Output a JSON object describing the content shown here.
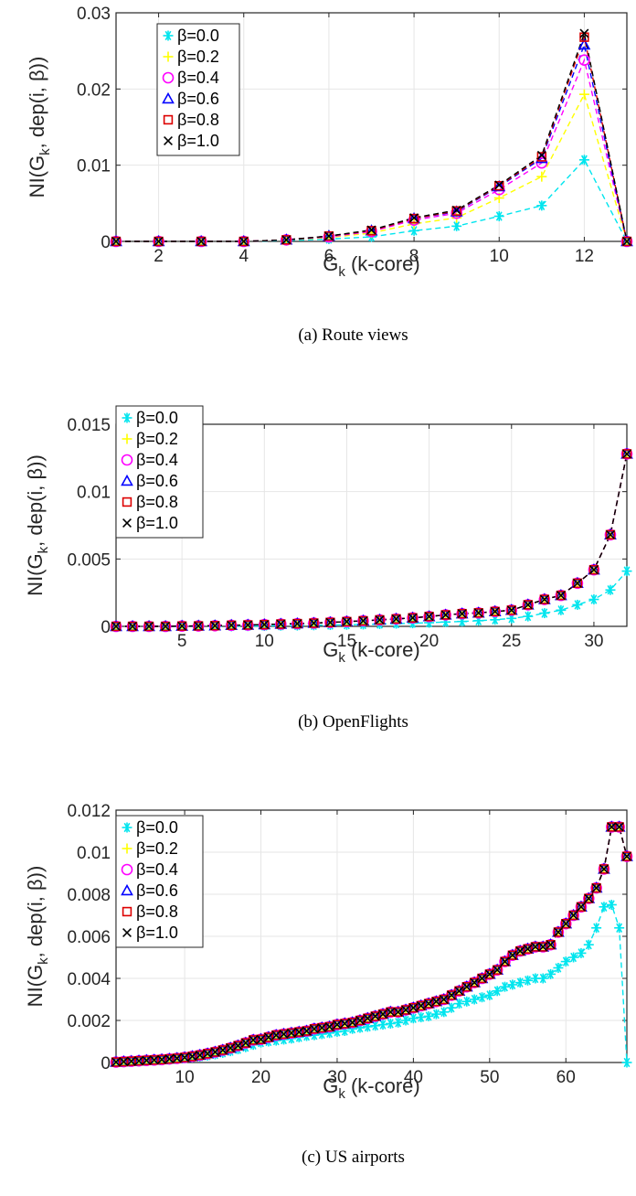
{
  "series_style": [
    {
      "color": "#00e5ee",
      "marker": "asterisk"
    },
    {
      "color": "#ffff00",
      "marker": "plus"
    },
    {
      "color": "#ff00ff",
      "marker": "circle"
    },
    {
      "color": "#0000ff",
      "marker": "triangle"
    },
    {
      "color": "#dd0000",
      "marker": "square"
    },
    {
      "color": "#000000",
      "marker": "x"
    }
  ],
  "chart_data": [
    {
      "type": "line",
      "caption": "(a) Route views",
      "xlabel_main": "G",
      "xlabel_sub": "k",
      "xlabel_rest": " (k-core)",
      "ylabel_prefix": "NI(G",
      "ylabel_sub": "k",
      "ylabel_suffix": ", dep(i, β))",
      "xlim": [
        1,
        13
      ],
      "ylim": [
        0,
        0.03
      ],
      "xticks": [
        2,
        4,
        6,
        8,
        10,
        12
      ],
      "yticks": [
        0,
        0.01,
        0.02,
        0.03
      ],
      "ytick_labels": [
        "0",
        "0.01",
        "0.02",
        "0.03"
      ],
      "grid": true,
      "legend_position": "top-left",
      "x": [
        1,
        2,
        3,
        4,
        5,
        6,
        7,
        8,
        9,
        10,
        11,
        12,
        13
      ],
      "series": [
        {
          "name": "β=0.0",
          "values": [
            0,
            0,
            0,
            0,
            0.0001,
            0.0003,
            0.0006,
            0.0014,
            0.002,
            0.0033,
            0.0047,
            0.0107,
            0
          ]
        },
        {
          "name": "β=0.2",
          "values": [
            0,
            0,
            0,
            0,
            0.0002,
            0.0005,
            0.0011,
            0.0023,
            0.0031,
            0.0057,
            0.0085,
            0.0193,
            0
          ]
        },
        {
          "name": "β=0.4",
          "values": [
            0,
            0,
            0,
            0,
            0.0002,
            0.0006,
            0.0013,
            0.0028,
            0.0037,
            0.0068,
            0.0103,
            0.0238,
            0
          ]
        },
        {
          "name": "β=0.6",
          "values": [
            0,
            0,
            0,
            0,
            0.0002,
            0.0007,
            0.0014,
            0.003,
            0.0039,
            0.0072,
            0.0109,
            0.0258,
            0
          ]
        },
        {
          "name": "β=0.8",
          "values": [
            0,
            0,
            0,
            0,
            0.0002,
            0.0007,
            0.0014,
            0.003,
            0.004,
            0.0073,
            0.0111,
            0.0268,
            0
          ]
        },
        {
          "name": "β=1.0",
          "values": [
            0,
            0,
            0,
            0,
            0.0002,
            0.0007,
            0.0015,
            0.0031,
            0.0041,
            0.0074,
            0.0113,
            0.0273,
            0
          ]
        }
      ]
    },
    {
      "type": "line",
      "caption": "(b) OpenFlights",
      "xlabel_main": "G",
      "xlabel_sub": "k",
      "xlabel_rest": " (k-core)",
      "ylabel_prefix": "NI(G",
      "ylabel_sub": "k",
      "ylabel_suffix": ", dep(i, β))",
      "xlim": [
        1,
        32
      ],
      "ylim": [
        0,
        0.015
      ],
      "xticks": [
        5,
        10,
        15,
        20,
        25,
        30
      ],
      "yticks": [
        0,
        0.005,
        0.01,
        0.015
      ],
      "ytick_labels": [
        "0",
        "0.005",
        "0.01",
        "0.015"
      ],
      "grid": true,
      "legend_position": "top-left",
      "x": [
        1,
        2,
        3,
        4,
        5,
        6,
        7,
        8,
        9,
        10,
        11,
        12,
        13,
        14,
        15,
        16,
        17,
        18,
        19,
        20,
        21,
        22,
        23,
        24,
        25,
        26,
        27,
        28,
        29,
        30,
        31,
        32
      ],
      "series": [
        {
          "name": "β=0.0",
          "values": [
            0,
            0,
            0,
            0,
            0,
            0,
            0,
            0,
            2e-05,
            3e-05,
            5e-05,
            6e-05,
            8e-05,
            0.0001,
            0.00012,
            0.00014,
            0.00017,
            0.0002,
            0.00023,
            0.00027,
            0.00032,
            0.00036,
            0.00042,
            0.00049,
            0.00059,
            0.00074,
            0.00098,
            0.0012,
            0.0016,
            0.002,
            0.0027,
            0.0041
          ]
        },
        {
          "name": "β=0.2",
          "values": [
            0,
            0,
            0,
            0,
            2e-05,
            3e-05,
            5e-05,
            8e-05,
            0.0001,
            0.00013,
            0.00017,
            0.0002,
            0.00024,
            0.00029,
            0.00035,
            0.00041,
            0.00048,
            0.00055,
            0.00063,
            0.00073,
            0.00085,
            0.00094,
            0.001,
            0.0011,
            0.0012,
            0.0016,
            0.002,
            0.0023,
            0.0032,
            0.0042,
            0.0068,
            0.0128
          ]
        },
        {
          "name": "β=0.4",
          "values": [
            0,
            0,
            0,
            0,
            2e-05,
            3e-05,
            5e-05,
            8e-05,
            0.0001,
            0.00013,
            0.00017,
            0.0002,
            0.00024,
            0.00029,
            0.00035,
            0.00041,
            0.00048,
            0.00055,
            0.00063,
            0.00073,
            0.00085,
            0.00094,
            0.001,
            0.0011,
            0.0012,
            0.0016,
            0.002,
            0.0023,
            0.0032,
            0.0042,
            0.0068,
            0.0128
          ]
        },
        {
          "name": "β=0.6",
          "values": [
            0,
            0,
            0,
            0,
            2e-05,
            3e-05,
            5e-05,
            8e-05,
            0.0001,
            0.00013,
            0.00017,
            0.0002,
            0.00024,
            0.00029,
            0.00035,
            0.00041,
            0.00048,
            0.00055,
            0.00063,
            0.00073,
            0.00085,
            0.00094,
            0.001,
            0.0011,
            0.0012,
            0.0016,
            0.002,
            0.0023,
            0.0032,
            0.0042,
            0.0068,
            0.0128
          ]
        },
        {
          "name": "β=0.8",
          "values": [
            0,
            0,
            0,
            0,
            2e-05,
            3e-05,
            5e-05,
            8e-05,
            0.0001,
            0.00013,
            0.00017,
            0.0002,
            0.00024,
            0.00029,
            0.00035,
            0.00041,
            0.00048,
            0.00055,
            0.00063,
            0.00073,
            0.00085,
            0.00094,
            0.001,
            0.0011,
            0.0012,
            0.0016,
            0.002,
            0.0023,
            0.0032,
            0.0042,
            0.0068,
            0.0128
          ]
        },
        {
          "name": "β=1.0",
          "values": [
            0,
            0,
            0,
            0,
            2e-05,
            3e-05,
            5e-05,
            8e-05,
            0.0001,
            0.00013,
            0.00017,
            0.0002,
            0.00024,
            0.00029,
            0.00035,
            0.00041,
            0.00048,
            0.00055,
            0.00063,
            0.00073,
            0.00085,
            0.00094,
            0.001,
            0.0011,
            0.0012,
            0.0016,
            0.002,
            0.0023,
            0.0032,
            0.0042,
            0.0068,
            0.0128
          ]
        }
      ]
    },
    {
      "type": "line",
      "caption": "(c) US airports",
      "xlabel_main": "G",
      "xlabel_sub": "k",
      "xlabel_rest": " (k-core)",
      "ylabel_prefix": "NI(G",
      "ylabel_sub": "k",
      "ylabel_suffix": ", dep(i, β))",
      "xlim": [
        1,
        68
      ],
      "ylim": [
        0,
        0.012
      ],
      "xticks": [
        10,
        20,
        30,
        40,
        50,
        60
      ],
      "yticks": [
        0,
        0.002,
        0.004,
        0.006,
        0.008,
        0.01,
        0.012
      ],
      "ytick_labels": [
        "0",
        "0.002",
        "0.004",
        "0.006",
        "0.008",
        "0.01",
        "0.012"
      ],
      "grid": true,
      "legend_position": "top-left",
      "x": [
        1,
        2,
        3,
        4,
        5,
        6,
        7,
        8,
        9,
        10,
        11,
        12,
        13,
        14,
        15,
        16,
        17,
        18,
        19,
        20,
        21,
        22,
        23,
        24,
        25,
        26,
        27,
        28,
        29,
        30,
        31,
        32,
        33,
        34,
        35,
        36,
        37,
        38,
        39,
        40,
        41,
        42,
        43,
        44,
        45,
        46,
        47,
        48,
        49,
        50,
        51,
        52,
        53,
        54,
        55,
        56,
        57,
        58,
        59,
        60,
        61,
        62,
        63,
        64,
        65,
        66,
        67,
        68
      ],
      "series": [
        {
          "name": "β=0.0",
          "values": [
            2e-05,
            3e-05,
            4e-05,
            6e-05,
            8e-05,
            0.0001,
            0.00012,
            0.00014,
            0.00017,
            0.0002,
            0.00024,
            0.00028,
            0.00033,
            0.00039,
            0.00046,
            0.00054,
            0.00063,
            0.00073,
            0.00084,
            0.00095,
            0.001,
            0.00104,
            0.00109,
            0.00114,
            0.0012,
            0.00126,
            0.0013,
            0.00135,
            0.0014,
            0.00146,
            0.0015,
            0.0016,
            0.00165,
            0.0017,
            0.00175,
            0.0018,
            0.00185,
            0.0019,
            0.002,
            0.0021,
            0.00215,
            0.0022,
            0.0023,
            0.0024,
            0.0026,
            0.0028,
            0.0029,
            0.003,
            0.0031,
            0.0032,
            0.0034,
            0.0036,
            0.0037,
            0.0038,
            0.0039,
            0.004,
            0.004,
            0.0042,
            0.0045,
            0.0048,
            0.005,
            0.0052,
            0.0056,
            0.0064,
            0.0074,
            0.0075,
            0.0064,
            0
          ]
        },
        {
          "name": "β=0.2",
          "values": [
            2e-05,
            4e-05,
            6e-05,
            8e-05,
            0.0001,
            0.00012,
            0.00014,
            0.00017,
            0.0002,
            0.00024,
            0.00029,
            0.00035,
            0.00042,
            0.0005,
            0.00059,
            0.00069,
            0.0008,
            0.00093,
            0.00107,
            0.0011,
            0.0012,
            0.0013,
            0.00135,
            0.0014,
            0.00145,
            0.0015,
            0.0016,
            0.00165,
            0.0017,
            0.0018,
            0.00185,
            0.0019,
            0.002,
            0.0021,
            0.0022,
            0.0023,
            0.0024,
            0.0024,
            0.0025,
            0.0026,
            0.0027,
            0.0028,
            0.0029,
            0.003,
            0.0032,
            0.0034,
            0.0036,
            0.0038,
            0.004,
            0.0042,
            0.0044,
            0.0048,
            0.0051,
            0.0053,
            0.0054,
            0.0055,
            0.0055,
            0.0056,
            0.0062,
            0.0066,
            0.007,
            0.0074,
            0.0078,
            0.0083,
            0.0092,
            0.0112,
            0.0112,
            0.0098
          ]
        },
        {
          "name": "β=0.4",
          "values": [
            2e-05,
            4e-05,
            6e-05,
            8e-05,
            0.0001,
            0.00012,
            0.00014,
            0.00017,
            0.0002,
            0.00024,
            0.00029,
            0.00035,
            0.00042,
            0.0005,
            0.00059,
            0.00069,
            0.0008,
            0.00093,
            0.00107,
            0.0011,
            0.0012,
            0.0013,
            0.00135,
            0.0014,
            0.00145,
            0.0015,
            0.0016,
            0.00165,
            0.0017,
            0.0018,
            0.00185,
            0.0019,
            0.002,
            0.0021,
            0.0022,
            0.0023,
            0.0024,
            0.0024,
            0.0025,
            0.0026,
            0.0027,
            0.0028,
            0.0029,
            0.003,
            0.0032,
            0.0034,
            0.0036,
            0.0038,
            0.004,
            0.0042,
            0.0044,
            0.0048,
            0.0051,
            0.0053,
            0.0054,
            0.0055,
            0.0055,
            0.0056,
            0.0062,
            0.0066,
            0.007,
            0.0074,
            0.0078,
            0.0083,
            0.0092,
            0.0112,
            0.0112,
            0.0098
          ]
        },
        {
          "name": "β=0.6",
          "values": [
            2e-05,
            4e-05,
            6e-05,
            8e-05,
            0.0001,
            0.00012,
            0.00014,
            0.00017,
            0.0002,
            0.00024,
            0.00029,
            0.00035,
            0.00042,
            0.0005,
            0.00059,
            0.00069,
            0.0008,
            0.00093,
            0.00107,
            0.0011,
            0.0012,
            0.0013,
            0.00135,
            0.0014,
            0.00145,
            0.0015,
            0.0016,
            0.00165,
            0.0017,
            0.0018,
            0.00185,
            0.0019,
            0.002,
            0.0021,
            0.0022,
            0.0023,
            0.0024,
            0.0024,
            0.0025,
            0.0026,
            0.0027,
            0.0028,
            0.0029,
            0.003,
            0.0032,
            0.0034,
            0.0036,
            0.0038,
            0.004,
            0.0042,
            0.0044,
            0.0048,
            0.0051,
            0.0053,
            0.0054,
            0.0055,
            0.0055,
            0.0056,
            0.0062,
            0.0066,
            0.007,
            0.0074,
            0.0078,
            0.0083,
            0.0092,
            0.0112,
            0.0112,
            0.0098
          ]
        },
        {
          "name": "β=0.8",
          "values": [
            2e-05,
            4e-05,
            6e-05,
            8e-05,
            0.0001,
            0.00012,
            0.00014,
            0.00017,
            0.0002,
            0.00024,
            0.00029,
            0.00035,
            0.00042,
            0.0005,
            0.00059,
            0.00069,
            0.0008,
            0.00093,
            0.00107,
            0.0011,
            0.0012,
            0.0013,
            0.00135,
            0.0014,
            0.00145,
            0.0015,
            0.0016,
            0.00165,
            0.0017,
            0.0018,
            0.00185,
            0.0019,
            0.002,
            0.0021,
            0.0022,
            0.0023,
            0.0024,
            0.0024,
            0.0025,
            0.0026,
            0.0027,
            0.0028,
            0.0029,
            0.003,
            0.0032,
            0.0034,
            0.0036,
            0.0038,
            0.004,
            0.0042,
            0.0044,
            0.0048,
            0.0051,
            0.0053,
            0.0054,
            0.0055,
            0.0055,
            0.0056,
            0.0062,
            0.0066,
            0.007,
            0.0074,
            0.0078,
            0.0083,
            0.0092,
            0.0112,
            0.0112,
            0.0098
          ]
        },
        {
          "name": "β=1.0",
          "values": [
            2e-05,
            4e-05,
            6e-05,
            8e-05,
            0.0001,
            0.00012,
            0.00014,
            0.00017,
            0.0002,
            0.00024,
            0.00029,
            0.00035,
            0.00042,
            0.0005,
            0.00059,
            0.00069,
            0.0008,
            0.00093,
            0.00107,
            0.0011,
            0.0012,
            0.0013,
            0.00135,
            0.0014,
            0.00145,
            0.0015,
            0.0016,
            0.00165,
            0.0017,
            0.0018,
            0.00185,
            0.0019,
            0.002,
            0.0021,
            0.0022,
            0.0023,
            0.0024,
            0.0024,
            0.0025,
            0.0026,
            0.0027,
            0.0028,
            0.0029,
            0.003,
            0.0032,
            0.0034,
            0.0036,
            0.0038,
            0.004,
            0.0042,
            0.0044,
            0.0048,
            0.0051,
            0.0053,
            0.0054,
            0.0055,
            0.0055,
            0.0056,
            0.0062,
            0.0066,
            0.007,
            0.0074,
            0.0078,
            0.0083,
            0.0092,
            0.0112,
            0.0112,
            0.0098
          ]
        }
      ]
    }
  ]
}
